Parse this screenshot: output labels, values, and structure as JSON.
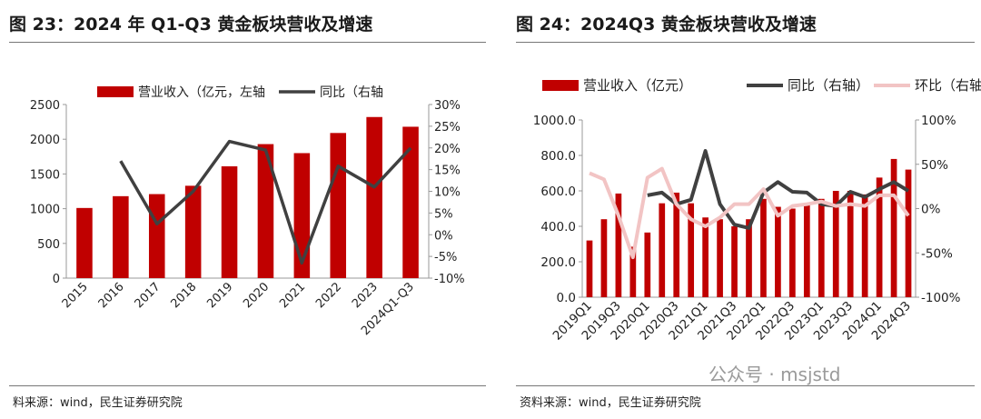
{
  "left": {
    "title": "图 23：2024 年 Q1-Q3 黄金板块营收及增速",
    "source": "料来源：wind，民生证券研究院"
  },
  "right": {
    "title": "图 24：2024Q3 黄金板块营收及增速",
    "source": "资料来源：wind，民生证券研究院"
  },
  "watermark": "公众号 · msjstd",
  "colors": {
    "bar": "#c00000",
    "line": "#404040",
    "line2": "#f2c4c4",
    "axis": "#999999"
  },
  "chart_data": [
    {
      "type": "bar",
      "categories": [
        "2015",
        "2016",
        "2017",
        "2018",
        "2019",
        "2020",
        "2021",
        "2022",
        "2023",
        "2024Q1-Q3"
      ],
      "series": [
        {
          "name": "营业收入（亿元，左轴",
          "type": "bar",
          "axis": "left",
          "values": [
            1010,
            1180,
            1210,
            1330,
            1610,
            1930,
            1800,
            2090,
            2320,
            2180
          ]
        },
        {
          "name": "同比（右轴",
          "type": "line",
          "axis": "right",
          "values": [
            null,
            17,
            2.5,
            10,
            21.5,
            19.5,
            -6.5,
            15.8,
            11,
            20
          ]
        }
      ],
      "yleft": {
        "min": 0,
        "max": 2500,
        "ticks": [
          "0",
          "500",
          "1000",
          "1500",
          "2000",
          "2500"
        ]
      },
      "yright": {
        "min": -10,
        "max": 30,
        "ticks": [
          "-10%",
          "-5%",
          "0%",
          "5%",
          "10%",
          "15%",
          "20%",
          "25%",
          "30%"
        ]
      }
    },
    {
      "type": "bar",
      "categories": [
        "2019Q1",
        "2019Q2",
        "2019Q3",
        "2019Q4",
        "2020Q1",
        "2020Q2",
        "2020Q3",
        "2020Q4",
        "2021Q1",
        "2021Q2",
        "2021Q3",
        "2021Q4",
        "2022Q1",
        "2022Q2",
        "2022Q3",
        "2022Q4",
        "2023Q1",
        "2023Q2",
        "2023Q3",
        "2023Q4",
        "2024Q1",
        "2024Q2",
        "2024Q3"
      ],
      "xtick_labels": [
        "2019Q1",
        "2019Q3",
        "2020Q1",
        "2020Q3",
        "2021Q1",
        "2021Q3",
        "2022Q1",
        "2022Q3",
        "2023Q1",
        "2023Q3",
        "2024Q1",
        "2024Q3"
      ],
      "series": [
        {
          "name": "营业收入（亿元）",
          "type": "bar",
          "axis": "left",
          "values": [
            320,
            440,
            585,
            285,
            365,
            530,
            590,
            530,
            450,
            440,
            400,
            440,
            555,
            510,
            500,
            525,
            555,
            600,
            600,
            580,
            675,
            780,
            720
          ]
        },
        {
          "name": "同比（右轴）",
          "type": "line",
          "axis": "right",
          "values": [
            null,
            null,
            null,
            null,
            15,
            18,
            5,
            10,
            65,
            5,
            -18,
            -22,
            18,
            30,
            19,
            18,
            5,
            3,
            19,
            13,
            22,
            30,
            20
          ]
        },
        {
          "name": "环比（右轴）",
          "type": "line",
          "axis": "right",
          "values": [
            40,
            33,
            -8,
            -55,
            35,
            45,
            5,
            -12,
            -20,
            -10,
            5,
            5,
            22,
            -8,
            3,
            5,
            8,
            3,
            5,
            3,
            15,
            15,
            -8
          ]
        }
      ],
      "yleft": {
        "min": 0,
        "max": 1000,
        "ticks": [
          "0.0",
          "200.0",
          "400.0",
          "600.0",
          "800.0",
          "1000.0"
        ]
      },
      "yright": {
        "min": -100,
        "max": 100,
        "ticks": [
          "-100%",
          "-50%",
          "0%",
          "50%",
          "100%"
        ]
      }
    }
  ]
}
